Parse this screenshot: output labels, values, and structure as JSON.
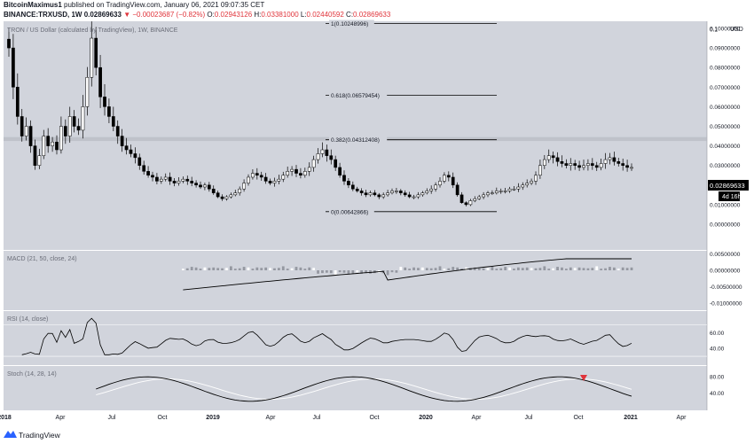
{
  "header": {
    "author": "BitcoinMaximus1",
    "published_text": "published on TradingView.com, January 06, 2021 09:07:35 CET",
    "symbol": "BINANCE:TRXUSD, 1W",
    "last_value": "0.02869633",
    "change_arrow": "▼",
    "change_text": "−0.00023687 (−0.82%)",
    "open_label": "O:",
    "open_value": "0.02943126",
    "high_label": "H:",
    "high_value": "0.03381000",
    "low_label": "L:",
    "low_value": "0.02440592",
    "close_label": "C:",
    "close_value": "0.02869633"
  },
  "chart_data": {
    "type": "candlestick",
    "title": "TRON / US Dollar (calculated by TradingView), 1W, BINANCE",
    "x_ticks": [
      "2018",
      "Apr",
      "Jul",
      "Oct",
      "2019",
      "Apr",
      "Jul",
      "Oct",
      "2020",
      "Apr",
      "Jul",
      "Oct",
      "2021",
      "Apr"
    ],
    "x_ticks_bold": [
      "2018",
      "2019",
      "2020",
      "2021"
    ],
    "y_unit": "USD",
    "y_ticks": [
      "0.1",
      "0.10000000",
      "0.09000000",
      "0.08000000",
      "0.07000000",
      "0.06000000",
      "0.05000000",
      "0.04000000",
      "0.03000000",
      "0.02000000",
      "0.01000000",
      "0.00000000"
    ],
    "ylim": [
      0.0,
      0.1
    ],
    "price_label": "0.02869633",
    "countdown_label": "4d 16h",
    "fib_levels": [
      {
        "label": "1(0.10248996)",
        "value": 0.10248996
      },
      {
        "label": "0.618(0.06579454)",
        "value": 0.06579454
      },
      {
        "label": "0.382(0.04312408)",
        "value": 0.04312408
      },
      {
        "label": "0(0.00642866)",
        "value": 0.00642866
      }
    ],
    "resistance_zone": [
      0.0425,
      0.0445
    ],
    "closes": [
      0.09,
      0.07,
      0.055,
      0.045,
      0.05,
      0.04,
      0.03,
      0.035,
      0.045,
      0.04,
      0.042,
      0.038,
      0.05,
      0.045,
      0.055,
      0.05,
      0.048,
      0.06,
      0.075,
      0.095,
      0.08,
      0.065,
      0.06,
      0.055,
      0.05,
      0.045,
      0.04,
      0.038,
      0.036,
      0.034,
      0.03,
      0.027,
      0.025,
      0.024,
      0.022,
      0.023,
      0.024,
      0.022,
      0.021,
      0.022,
      0.023,
      0.022,
      0.021,
      0.02,
      0.019,
      0.02,
      0.018,
      0.016,
      0.014,
      0.013,
      0.014,
      0.015,
      0.016,
      0.018,
      0.021,
      0.024,
      0.026,
      0.025,
      0.024,
      0.022,
      0.021,
      0.022,
      0.023,
      0.025,
      0.027,
      0.028,
      0.026,
      0.025,
      0.027,
      0.029,
      0.033,
      0.036,
      0.038,
      0.035,
      0.033,
      0.029,
      0.025,
      0.022,
      0.02,
      0.018,
      0.017,
      0.016,
      0.015,
      0.016,
      0.015,
      0.014,
      0.015,
      0.016,
      0.017,
      0.017,
      0.016,
      0.015,
      0.014,
      0.014,
      0.015,
      0.016,
      0.017,
      0.018,
      0.02,
      0.022,
      0.025,
      0.024,
      0.02,
      0.015,
      0.011,
      0.01,
      0.012,
      0.013,
      0.014,
      0.015,
      0.016,
      0.016,
      0.017,
      0.017,
      0.017,
      0.018,
      0.018,
      0.019,
      0.02,
      0.021,
      0.022,
      0.025,
      0.03,
      0.033,
      0.035,
      0.034,
      0.032,
      0.031,
      0.03,
      0.031,
      0.03,
      0.029,
      0.03,
      0.031,
      0.03,
      0.029,
      0.031,
      0.033,
      0.034,
      0.032,
      0.031,
      0.03,
      0.029,
      0.029
    ],
    "macd_panel": {
      "title": "MACD (21, 50, close, 24)",
      "y_ticks": [
        "0.00500000",
        "0.00000000",
        "-0.00500000",
        "-0.01000000"
      ],
      "ylim": [
        -0.0115,
        0.006
      ]
    },
    "rsi_panel": {
      "title": "RSI (14, close)",
      "y_ticks": [
        "60.00",
        "40.00"
      ],
      "ylim": [
        20,
        85
      ]
    },
    "stoch_panel": {
      "title": "Stoch (14, 28, 14)",
      "y_ticks": [
        "80.00",
        "40.00"
      ],
      "ylim": [
        0,
        100
      ]
    }
  },
  "footer": {
    "logo_text": "TradingView"
  },
  "colors": {
    "pane_bg": "#d1d4dc",
    "line": "#000000",
    "marker": "#e0343b",
    "stoch_d": "#ffffff"
  }
}
